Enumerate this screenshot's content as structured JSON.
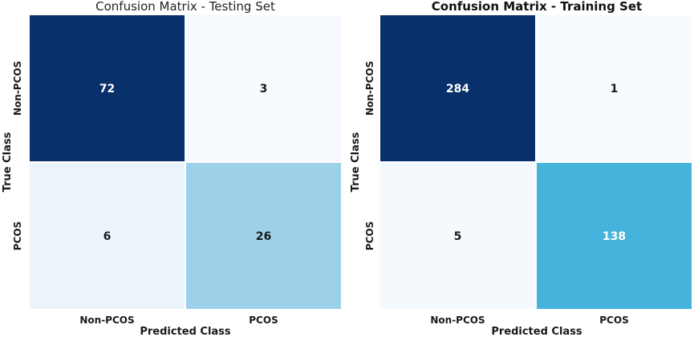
{
  "chart_data": [
    {
      "type": "heatmap",
      "title": "Confusion Matrix - Testing Set",
      "title_weight": "normal",
      "xlabel": "Predicted Class",
      "ylabel": "True Class",
      "x_categories": [
        "Non-PCOS",
        "PCOS"
      ],
      "y_categories": [
        "Non-PCOS",
        "PCOS"
      ],
      "values": [
        [
          72,
          3
        ],
        [
          6,
          26
        ]
      ],
      "colormap": "Blues",
      "colors": [
        [
          "#08306b",
          "#f7fbff"
        ],
        [
          "#ebf3fb",
          "#9dd1e9"
        ]
      ],
      "grid": false,
      "legend": "none"
    },
    {
      "type": "heatmap",
      "title": "Confusion Matrix - Training Set",
      "title_weight": "bold",
      "xlabel": "Predicted Class",
      "ylabel": "True Class",
      "x_categories": [
        "Non-PCOS",
        "PCOS"
      ],
      "y_categories": [
        "Non-PCOS",
        "PCOS"
      ],
      "values": [
        [
          284,
          1
        ],
        [
          5,
          138
        ]
      ],
      "colormap": "Blues",
      "colors": [
        [
          "#08306b",
          "#f7fbff"
        ],
        [
          "#f4f9fe",
          "#45b3db"
        ]
      ],
      "grid": false,
      "legend": "none"
    }
  ]
}
